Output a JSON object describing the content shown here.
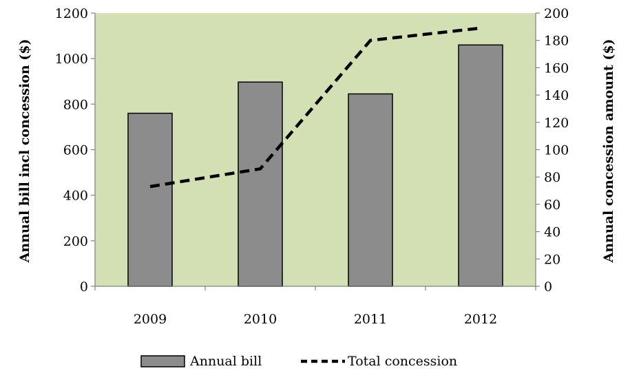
{
  "chart_data": {
    "type": "bar",
    "categories": [
      "2009",
      "2010",
      "2011",
      "2012"
    ],
    "series": [
      {
        "name": "Annual bill",
        "type": "bar",
        "axis": "left",
        "values": [
          760,
          897,
          845,
          1060
        ],
        "color": "#8c8c8c"
      },
      {
        "name": "Total concession",
        "type": "line",
        "axis": "right",
        "style": "dashed",
        "values": [
          73,
          86,
          180,
          189
        ],
        "color": "#000000"
      }
    ],
    "ylabel": "Annual bill incl concession ($)",
    "y2label": "Annual concession amount ($)",
    "ylim": [
      0,
      1200
    ],
    "yticks": [
      "0",
      "200",
      "400",
      "600",
      "800",
      "1000",
      "1200"
    ],
    "y2lim": [
      0,
      200
    ],
    "y2ticks": [
      "0",
      "20",
      "40",
      "60",
      "80",
      "100",
      "120",
      "140",
      "160",
      "180",
      "200"
    ],
    "plot_background": "#d2e0b4",
    "grid": false,
    "legend_position": "bottom"
  }
}
